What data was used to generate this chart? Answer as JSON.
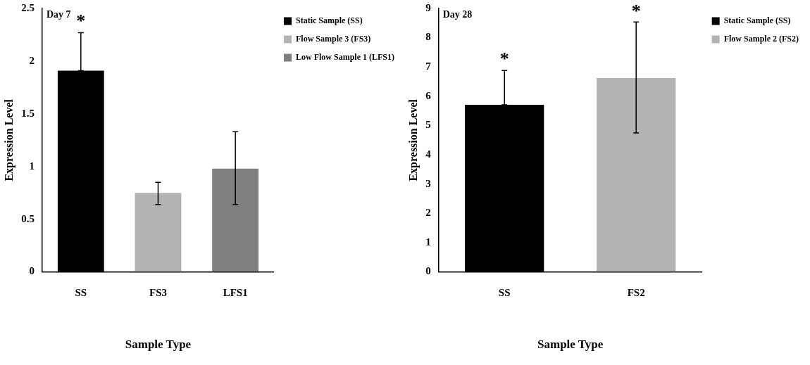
{
  "chart_data": [
    {
      "type": "bar",
      "xlabel": "Sample Type",
      "ylabel": "Expression Level",
      "categories": [
        "SS",
        "FS3",
        "LFS1"
      ],
      "ylim": [
        0,
        2.5
      ],
      "yticks": [
        0,
        0.5,
        1,
        1.5,
        2,
        2.5
      ],
      "grid": false,
      "legend": "top right",
      "series": [
        {
          "name": "Static Sample (SS)",
          "color": "#000000",
          "values": [
            1.91,
            null,
            null
          ],
          "errors": [
            [
              1.91,
              2.27
            ],
            null,
            null
          ]
        },
        {
          "name": "Flow Sample 3 (FS3)",
          "color": "#b3b3b3",
          "values": [
            null,
            0.75,
            null
          ],
          "errors": [
            null,
            [
              0.64,
              0.85
            ],
            null
          ]
        },
        {
          "name": "Low Flow Sample 1 (LFS1)",
          "color": "#808080",
          "values": [
            null,
            null,
            0.98
          ],
          "errors": [
            null,
            null,
            [
              0.64,
              1.33
            ]
          ]
        }
      ],
      "annotations": [
        "Day 7",
        "*"
      ]
    },
    {
      "type": "bar",
      "xlabel": "Sample Type",
      "ylabel": "Expression Level",
      "categories": [
        "SS",
        "FS2"
      ],
      "ylim": [
        0,
        9
      ],
      "yticks": [
        0,
        1,
        2,
        3,
        4,
        5,
        6,
        7,
        8,
        9
      ],
      "grid": false,
      "legend": "top right",
      "series": [
        {
          "name": "Static Sample (SS)",
          "color": "#000000",
          "values": [
            5.71,
            null
          ],
          "errors": [
            [
              5.71,
              6.88
            ],
            null
          ]
        },
        {
          "name": "Flow Sample 2 (FS2)",
          "color": "#b3b3b3",
          "values": [
            null,
            6.62
          ],
          "errors": [
            null,
            [
              4.75,
              8.54
            ]
          ]
        }
      ],
      "annotations": [
        "Day 28",
        "*",
        "*"
      ]
    }
  ]
}
